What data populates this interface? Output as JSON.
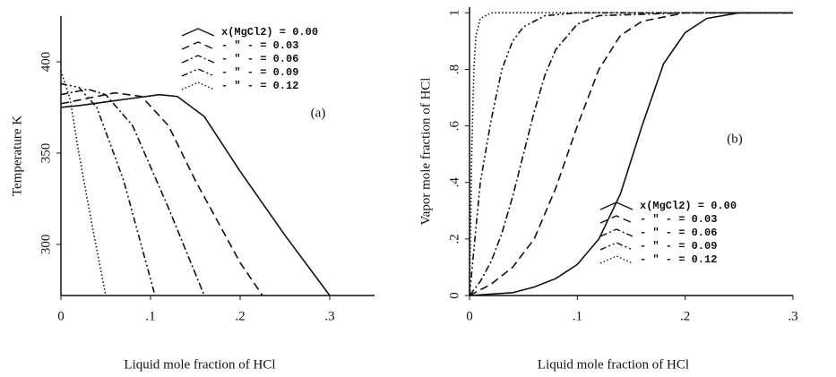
{
  "chart_data": [
    {
      "type": "line",
      "xlabel": "Liquid mole fraction of HCl",
      "ylabel": "Temperature K",
      "annotation": "(a)",
      "xlim": [
        0,
        0.35
      ],
      "xticks": [
        0,
        {
          "value": 0.1,
          "label": ".1"
        },
        {
          "value": 0.2,
          "label": ".2"
        },
        {
          "value": 0.3,
          "label": ".3"
        }
      ],
      "ylim": [
        272,
        425
      ],
      "yticks": [
        300,
        350,
        400
      ],
      "legend": "upper right",
      "series": [
        {
          "name": "x(MgCl2) = 0.00",
          "color": "#111111",
          "style": "solid",
          "x": [
            0,
            0.02,
            0.05,
            0.08,
            0.11,
            0.13,
            0.16,
            0.2,
            0.25,
            0.3
          ],
          "values": [
            375,
            376,
            378,
            380,
            382,
            381,
            370,
            340,
            305,
            272
          ]
        },
        {
          "name": "- \" - = 0.03",
          "color": "#111111",
          "style": "dashed",
          "x": [
            0,
            0.03,
            0.06,
            0.09,
            0.12,
            0.15,
            0.2,
            0.225
          ],
          "values": [
            377,
            380,
            383,
            381,
            365,
            335,
            290,
            272
          ]
        },
        {
          "name": "- \" - = 0.06",
          "color": "#111111",
          "style": "dashdot",
          "x": [
            0,
            0.03,
            0.05,
            0.08,
            0.12,
            0.16
          ],
          "values": [
            382,
            385,
            382,
            365,
            320,
            272
          ]
        },
        {
          "name": "- \" - = 0.09",
          "color": "#111111",
          "style": "dashdotdot",
          "x": [
            0,
            0.02,
            0.04,
            0.07,
            0.105
          ],
          "values": [
            388,
            386,
            375,
            335,
            272
          ]
        },
        {
          "name": "- \" - = 0.12",
          "color": "#111111",
          "style": "dotted",
          "x": [
            0,
            0.01,
            0.02,
            0.035,
            0.05
          ],
          "values": [
            395,
            380,
            350,
            310,
            272
          ]
        }
      ]
    },
    {
      "type": "line",
      "xlabel": "Liquid mole fraction of HCl",
      "ylabel": "Vapor mole fraction of HCl",
      "annotation": "(b)",
      "xlim": [
        0,
        0.3
      ],
      "xticks": [
        0,
        {
          "value": 0.1,
          "label": ".1"
        },
        {
          "value": 0.2,
          "label": ".2"
        },
        {
          "value": 0.3,
          "label": ".3"
        }
      ],
      "ylim": [
        0,
        1.02
      ],
      "yticks": [
        0,
        {
          "value": 0.2,
          "label": ".2"
        },
        {
          "value": 0.4,
          "label": ".4"
        },
        {
          "value": 0.6,
          "label": ".6"
        },
        {
          "value": 0.8,
          "label": ".8"
        },
        1
      ],
      "legend": "lower right",
      "series": [
        {
          "name": "x(MgCl2) = 0.00",
          "color": "#111111",
          "style": "solid",
          "x": [
            0,
            0.04,
            0.06,
            0.08,
            0.1,
            0.12,
            0.14,
            0.16,
            0.18,
            0.2,
            0.22,
            0.25,
            0.3
          ],
          "values": [
            0,
            0.01,
            0.03,
            0.06,
            0.11,
            0.2,
            0.36,
            0.6,
            0.82,
            0.93,
            0.98,
            1.0,
            1.0
          ]
        },
        {
          "name": "- \" - = 0.03",
          "color": "#111111",
          "style": "dashed",
          "x": [
            0,
            0.02,
            0.04,
            0.06,
            0.08,
            0.1,
            0.12,
            0.14,
            0.16,
            0.2,
            0.3
          ],
          "values": [
            0,
            0.04,
            0.1,
            0.2,
            0.38,
            0.6,
            0.8,
            0.92,
            0.97,
            1,
            1
          ]
        },
        {
          "name": "- \" - = 0.06",
          "color": "#111111",
          "style": "dashdot",
          "x": [
            0,
            0.01,
            0.02,
            0.03,
            0.04,
            0.05,
            0.06,
            0.07,
            0.08,
            0.1,
            0.12,
            0.2,
            0.3
          ],
          "values": [
            0,
            0.05,
            0.12,
            0.22,
            0.35,
            0.5,
            0.65,
            0.78,
            0.87,
            0.96,
            0.99,
            1,
            1
          ]
        },
        {
          "name": "- \" - = 0.09",
          "color": "#111111",
          "style": "dashdotdot",
          "x": [
            0,
            0.005,
            0.01,
            0.02,
            0.03,
            0.04,
            0.05,
            0.07,
            0.1,
            0.2,
            0.3
          ],
          "values": [
            0,
            0.2,
            0.4,
            0.62,
            0.8,
            0.9,
            0.95,
            0.99,
            1,
            1,
            1
          ]
        },
        {
          "name": "- \" - = 0.12",
          "color": "#111111",
          "style": "dotted",
          "x": [
            0,
            0.002,
            0.004,
            0.006,
            0.01,
            0.02,
            0.3
          ],
          "values": [
            0,
            0.5,
            0.8,
            0.92,
            0.98,
            1,
            1
          ]
        }
      ]
    }
  ]
}
